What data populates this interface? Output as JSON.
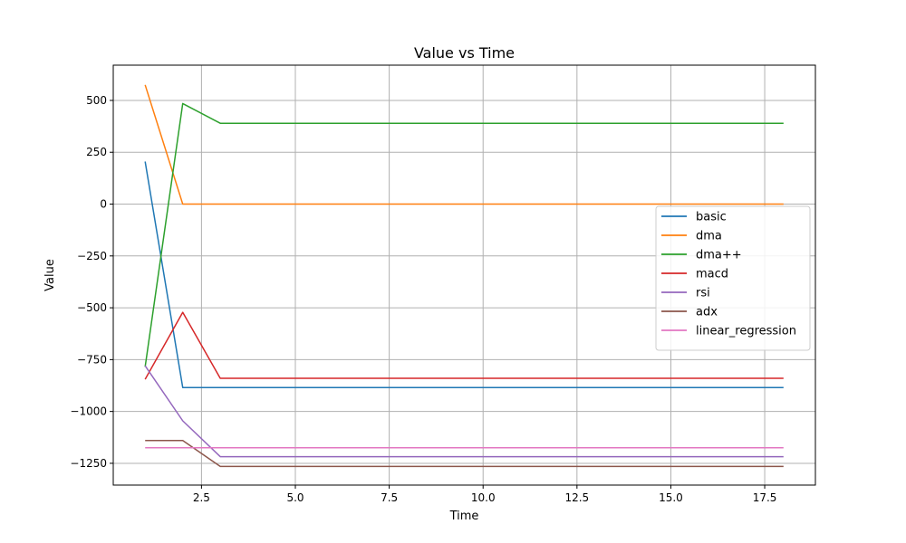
{
  "chart_data": {
    "type": "line",
    "title": "Value vs Time",
    "xlabel": "Time",
    "ylabel": "Value",
    "xlim": [
      0.15,
      18.85
    ],
    "ylim": [
      -1355,
      670
    ],
    "xticks": [
      2.5,
      5.0,
      7.5,
      10.0,
      12.5,
      15.0,
      17.5
    ],
    "xtick_labels": [
      "2.5",
      "5.0",
      "7.5",
      "10.0",
      "12.5",
      "15.0",
      "17.5"
    ],
    "yticks": [
      -1250,
      -1000,
      -750,
      -500,
      -250,
      0,
      250,
      500
    ],
    "ytick_labels": [
      "−1250",
      "−1000",
      "−750",
      "−500",
      "−250",
      "0",
      "250",
      "500"
    ],
    "grid": true,
    "legend_position": "center-right",
    "x": [
      1,
      2,
      3,
      4,
      5,
      6,
      7,
      8,
      9,
      10,
      11,
      12,
      13,
      14,
      15,
      16,
      17,
      18
    ],
    "series": [
      {
        "name": "basic",
        "color": "#1f77b4",
        "values": [
          205,
          -885,
          -885,
          -885,
          -885,
          -885,
          -885,
          -885,
          -885,
          -885,
          -885,
          -885,
          -885,
          -885,
          -885,
          -885,
          -885,
          -885
        ]
      },
      {
        "name": "dma",
        "color": "#ff7f0e",
        "values": [
          575,
          0,
          0,
          0,
          0,
          0,
          0,
          0,
          0,
          0,
          0,
          0,
          0,
          0,
          0,
          0,
          0,
          0
        ]
      },
      {
        "name": "dma++",
        "color": "#2ca02c",
        "values": [
          -785,
          485,
          390,
          390,
          390,
          390,
          390,
          390,
          390,
          390,
          390,
          390,
          390,
          390,
          390,
          390,
          390,
          390
        ]
      },
      {
        "name": "macd",
        "color": "#d62728",
        "values": [
          -845,
          -522,
          -840,
          -840,
          -840,
          -840,
          -840,
          -840,
          -840,
          -840,
          -840,
          -840,
          -840,
          -840,
          -840,
          -840,
          -840,
          -840
        ]
      },
      {
        "name": "rsi",
        "color": "#9467bd",
        "values": [
          -780,
          -1045,
          -1218,
          -1218,
          -1218,
          -1218,
          -1218,
          -1218,
          -1218,
          -1218,
          -1218,
          -1218,
          -1218,
          -1218,
          -1218,
          -1218,
          -1218,
          -1218
        ]
      },
      {
        "name": "adx",
        "color": "#8c564b",
        "values": [
          -1140,
          -1140,
          -1265,
          -1265,
          -1265,
          -1265,
          -1265,
          -1265,
          -1265,
          -1265,
          -1265,
          -1265,
          -1265,
          -1265,
          -1265,
          -1265,
          -1265,
          -1265
        ]
      },
      {
        "name": "linear_regression",
        "color": "#e377c2",
        "values": [
          -1175,
          -1175,
          -1175,
          -1175,
          -1175,
          -1175,
          -1175,
          -1175,
          -1175,
          -1175,
          -1175,
          -1175,
          -1175,
          -1175,
          -1175,
          -1175,
          -1175,
          -1175
        ]
      }
    ]
  }
}
